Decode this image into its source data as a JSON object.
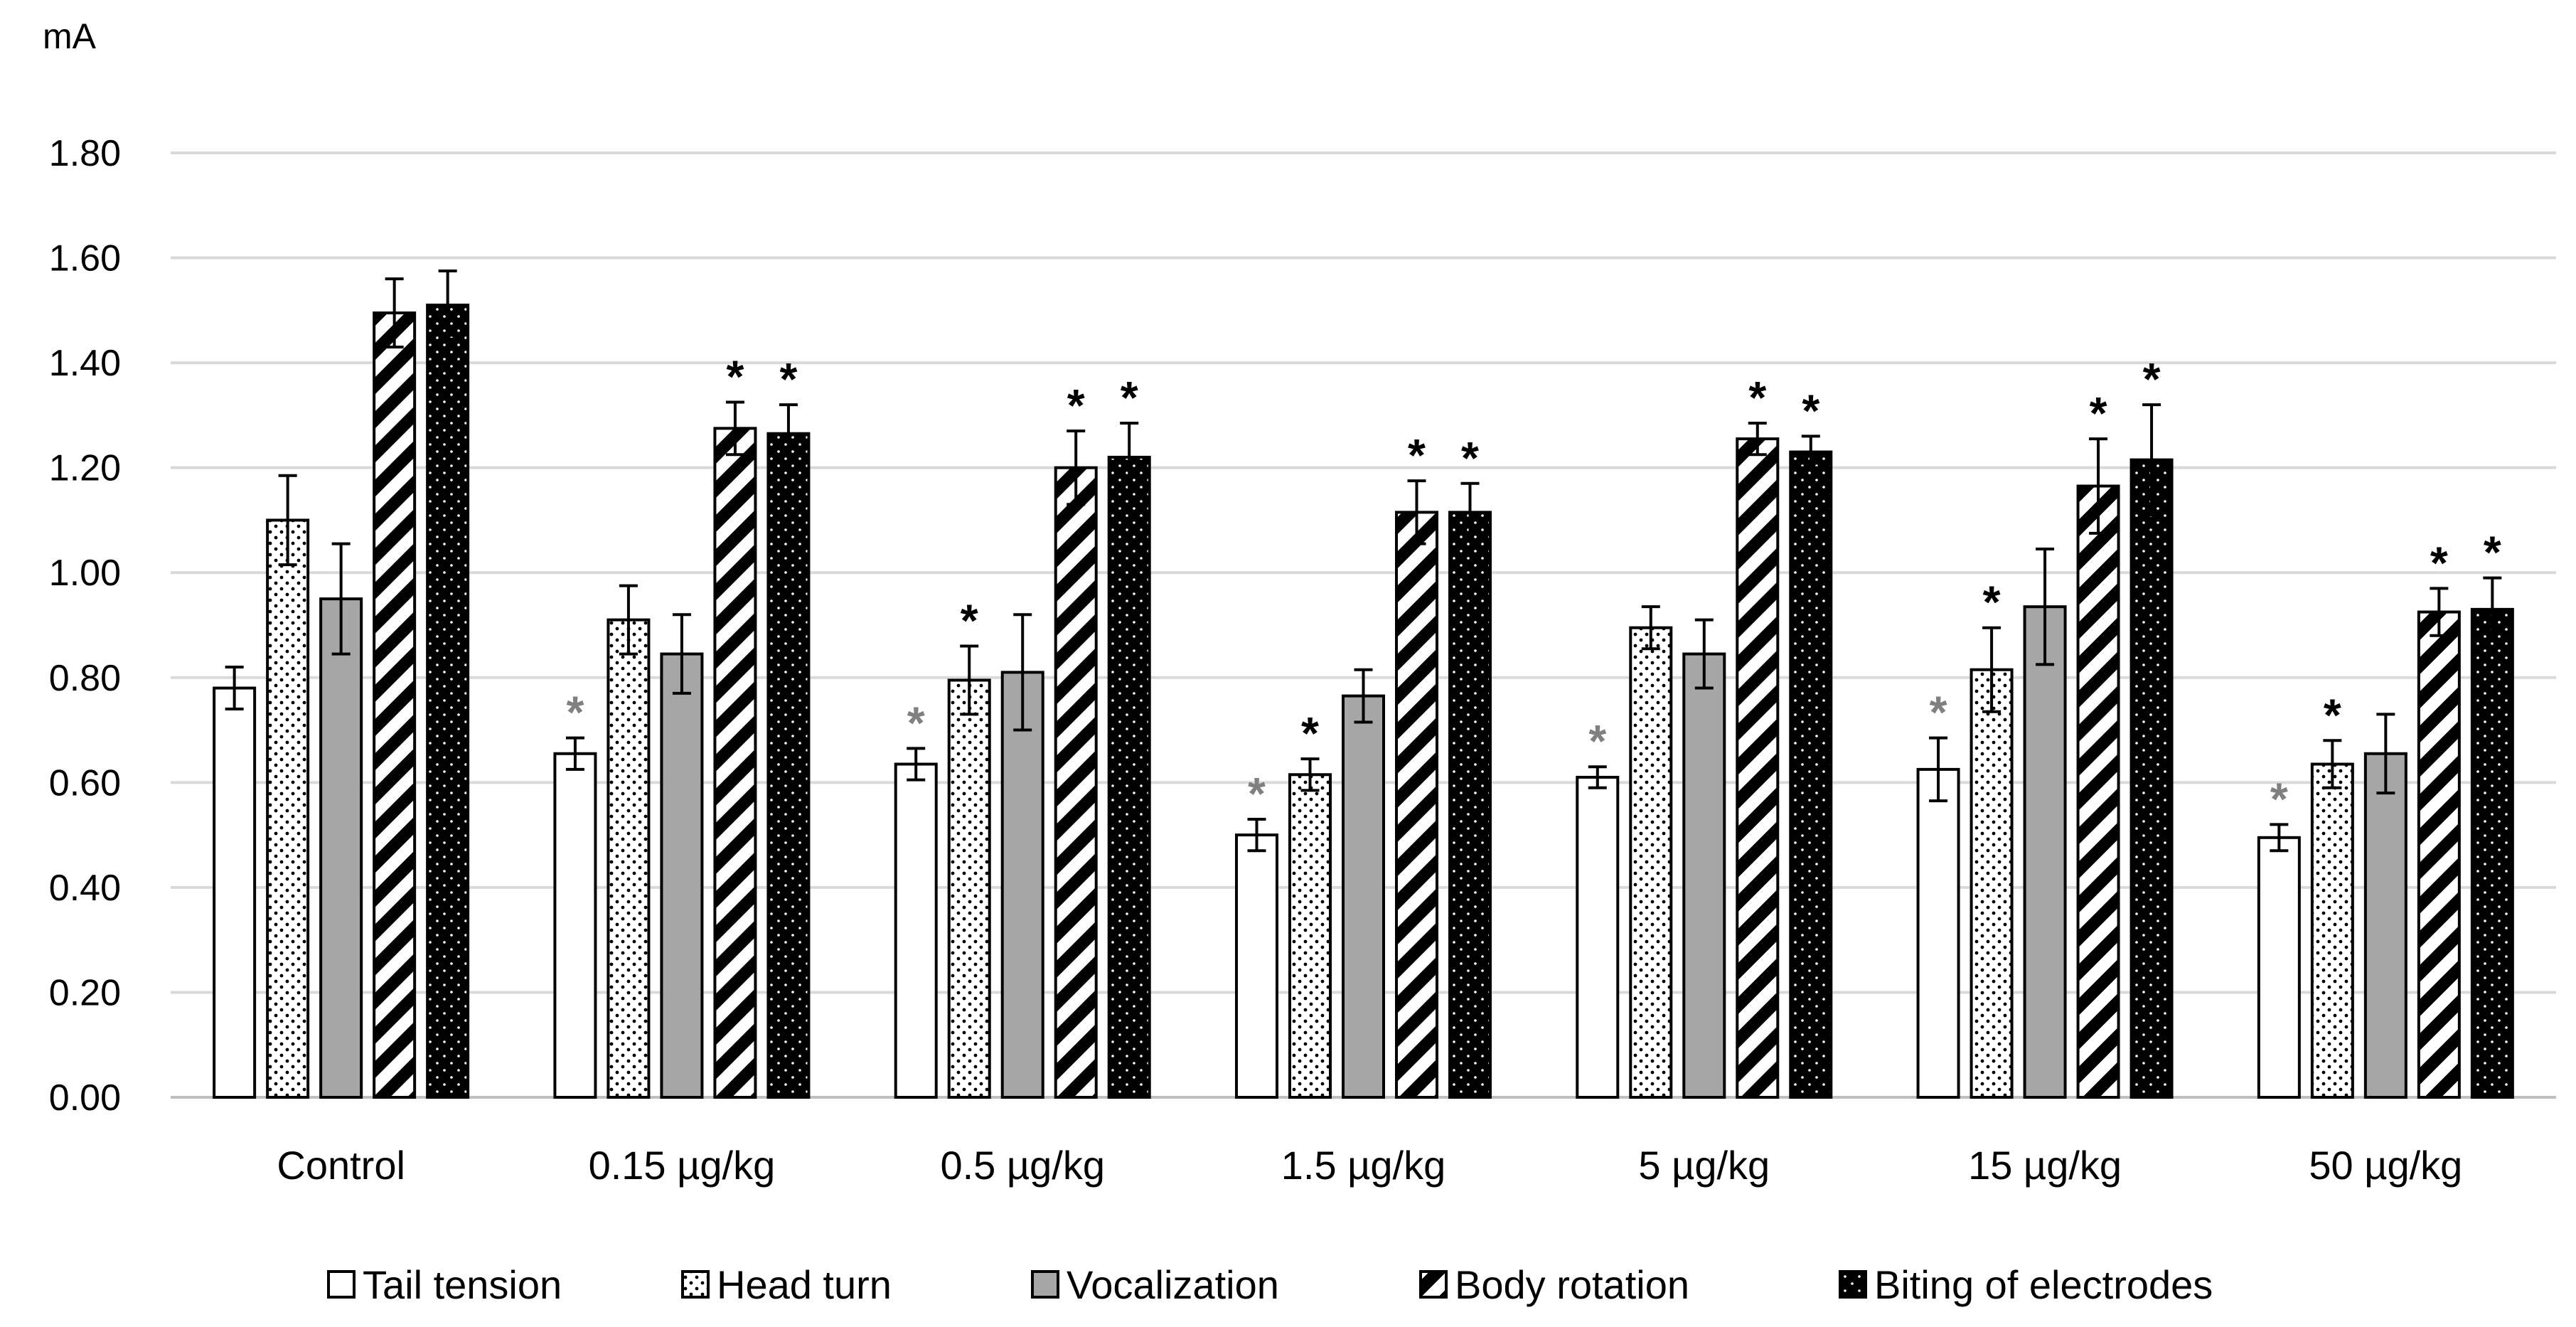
{
  "chart_data": {
    "type": "bar",
    "title": "",
    "xlabel": "",
    "ylabel": "mA",
    "ylim": [
      0,
      1.8
    ],
    "y_ticks": [
      "0.00",
      "0.20",
      "0.40",
      "0.60",
      "0.80",
      "1.00",
      "1.20",
      "1.40",
      "1.60",
      "1.80"
    ],
    "grid": true,
    "legend_position": "bottom",
    "significance_marker": "*",
    "categories": [
      "Control",
      "0.15 µg/kg",
      "0.5 µg/kg",
      "1.5 µg/kg",
      "5 µg/kg",
      "15 µg/kg",
      "50 µg/kg"
    ],
    "series": [
      {
        "name": "Tail tension",
        "pattern": "white",
        "values": [
          0.78,
          0.655,
          0.635,
          0.5,
          0.61,
          0.625,
          0.495
        ],
        "errors": [
          0.04,
          0.03,
          0.03,
          0.03,
          0.02,
          0.06,
          0.025
        ],
        "significant": [
          false,
          true,
          true,
          true,
          true,
          true,
          true
        ],
        "marker_color": "#808080"
      },
      {
        "name": "Head turn",
        "pattern": "dots",
        "values": [
          1.1,
          0.91,
          0.795,
          0.615,
          0.895,
          0.815,
          0.635
        ],
        "errors": [
          0.085,
          0.065,
          0.065,
          0.03,
          0.04,
          0.08,
          0.045
        ],
        "significant": [
          false,
          false,
          true,
          true,
          false,
          true,
          true
        ],
        "marker_color": "#000000"
      },
      {
        "name": "Vocalization",
        "pattern": "gray",
        "values": [
          0.95,
          0.845,
          0.81,
          0.765,
          0.845,
          0.935,
          0.655
        ],
        "errors": [
          0.105,
          0.075,
          0.11,
          0.05,
          0.065,
          0.11,
          0.075
        ],
        "significant": [
          false,
          false,
          false,
          false,
          false,
          false,
          false
        ],
        "marker_color": "#000000"
      },
      {
        "name": "Body rotation",
        "pattern": "diagonal",
        "values": [
          1.495,
          1.275,
          1.2,
          1.115,
          1.255,
          1.165,
          0.925
        ],
        "errors": [
          0.065,
          0.05,
          0.07,
          0.06,
          0.03,
          0.09,
          0.045
        ],
        "significant": [
          false,
          true,
          true,
          true,
          true,
          true,
          true
        ],
        "marker_color": "#000000"
      },
      {
        "name": "Biting of electrodes",
        "pattern": "black",
        "values": [
          1.51,
          1.265,
          1.22,
          1.115,
          1.23,
          1.215,
          0.93
        ],
        "errors": [
          0.065,
          0.055,
          0.065,
          0.055,
          0.03,
          0.105,
          0.06
        ],
        "significant": [
          false,
          true,
          true,
          true,
          true,
          true,
          true
        ],
        "marker_color": "#000000"
      }
    ]
  },
  "colors": {
    "grid": "#d9d9d9",
    "axis": "#bfbfbf",
    "text": "#000000",
    "gray_fill": "#a6a6a6",
    "gray_marker": "#808080"
  }
}
